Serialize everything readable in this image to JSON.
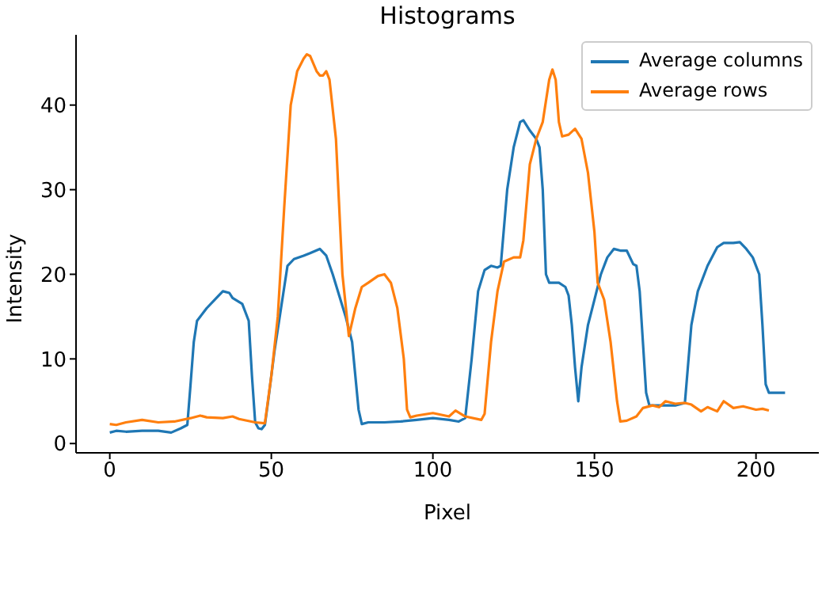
{
  "chart_data": {
    "type": "line",
    "title": "Histograms",
    "xlabel": "Pixel",
    "ylabel": "Intensity",
    "xlim": [
      -10.45,
      219.45
    ],
    "ylim": [
      -1.1,
      48.3
    ],
    "xticks": [
      0,
      50,
      100,
      150,
      200
    ],
    "yticks": [
      0,
      10,
      20,
      30,
      40
    ],
    "grid": false,
    "legend": "top right",
    "marker": "none",
    "line_style": "solid",
    "series": [
      {
        "name": "Average columns",
        "color": "#1f77b4",
        "x": [
          0,
          2,
          5,
          10,
          15,
          19,
          22,
          24,
          25,
          26,
          27,
          30,
          33,
          35,
          37,
          38,
          41,
          43,
          44,
          45,
          46,
          47,
          48,
          49,
          51,
          53,
          55,
          57,
          60,
          62,
          65,
          67,
          69,
          71,
          73,
          75,
          76,
          77,
          78,
          80,
          85,
          90,
          95,
          100,
          105,
          108,
          110,
          112,
          114,
          116,
          118,
          120,
          121,
          123,
          125,
          127,
          128,
          130,
          132,
          133,
          134,
          135,
          136,
          139,
          141,
          142,
          143,
          144,
          145,
          146,
          148,
          150,
          152,
          154,
          156,
          158,
          160,
          162,
          163,
          164,
          165,
          166,
          167,
          170,
          175,
          178,
          180,
          182,
          185,
          188,
          190,
          193,
          195,
          197,
          199,
          201,
          202,
          203,
          204,
          206,
          209
        ],
        "values": [
          1.3,
          1.5,
          1.4,
          1.5,
          1.5,
          1.3,
          1.8,
          2.2,
          7,
          12,
          14.5,
          16,
          17.2,
          18,
          17.8,
          17.2,
          16.5,
          14.5,
          8,
          2.5,
          1.8,
          1.7,
          2.2,
          5,
          11,
          16,
          21,
          21.8,
          22.2,
          22.5,
          23,
          22.2,
          20,
          17.5,
          15,
          12,
          8,
          4,
          2.3,
          2.5,
          2.5,
          2.6,
          2.8,
          3,
          2.8,
          2.6,
          3,
          10,
          18,
          20.5,
          21,
          20.8,
          21,
          30,
          35,
          38,
          38.2,
          37,
          36,
          35,
          30,
          20,
          19,
          19,
          18.5,
          17.5,
          14,
          9,
          5,
          9,
          14,
          17,
          20,
          22,
          23,
          22.8,
          22.8,
          21.2,
          21,
          18,
          12,
          6,
          4.5,
          4.5,
          4.5,
          4.8,
          14,
          18,
          21,
          23.2,
          23.7,
          23.7,
          23.8,
          23,
          22,
          20,
          14,
          7,
          6,
          6,
          6
        ]
      },
      {
        "name": "Average rows",
        "color": "#ff7f0e",
        "x": [
          0,
          2,
          5,
          10,
          15,
          20,
          25,
          28,
          30,
          35,
          38,
          40,
          45,
          48,
          50,
          52,
          54,
          56,
          58,
          60,
          61,
          62,
          64,
          65,
          66,
          67,
          68,
          70,
          72,
          74,
          76,
          78,
          80,
          83,
          85,
          87,
          89,
          91,
          92,
          93,
          95,
          100,
          105,
          107,
          110,
          115,
          116,
          118,
          120,
          122,
          125,
          127,
          128,
          130,
          132,
          134,
          136,
          137,
          138,
          139,
          140,
          142,
          144,
          146,
          148,
          150,
          151,
          153,
          155,
          157,
          158,
          160,
          163,
          165,
          168,
          170,
          172,
          175,
          178,
          180,
          183,
          185,
          188,
          190,
          193,
          196,
          200,
          202,
          204
        ],
        "values": [
          2.3,
          2.2,
          2.5,
          2.8,
          2.5,
          2.6,
          3,
          3.3,
          3.1,
          3,
          3.2,
          2.9,
          2.5,
          2.4,
          8,
          15,
          28,
          40,
          44,
          45.5,
          46,
          45.8,
          44,
          43.5,
          43.5,
          44,
          43,
          36,
          20,
          12.7,
          16,
          18.5,
          19,
          19.8,
          20,
          19,
          16,
          10,
          4,
          3.1,
          3.3,
          3.6,
          3.2,
          3.9,
          3.2,
          2.8,
          3.5,
          12,
          18,
          21.5,
          22,
          22,
          24,
          33,
          36,
          38,
          43,
          44.2,
          43,
          38,
          36.3,
          36.5,
          37.2,
          36,
          32,
          25,
          19,
          17,
          12,
          5,
          2.6,
          2.7,
          3.2,
          4.2,
          4.5,
          4.3,
          5,
          4.7,
          4.8,
          4.6,
          3.8,
          4.3,
          3.8,
          5,
          4.2,
          4.4,
          4,
          4.1,
          3.9
        ]
      }
    ]
  }
}
